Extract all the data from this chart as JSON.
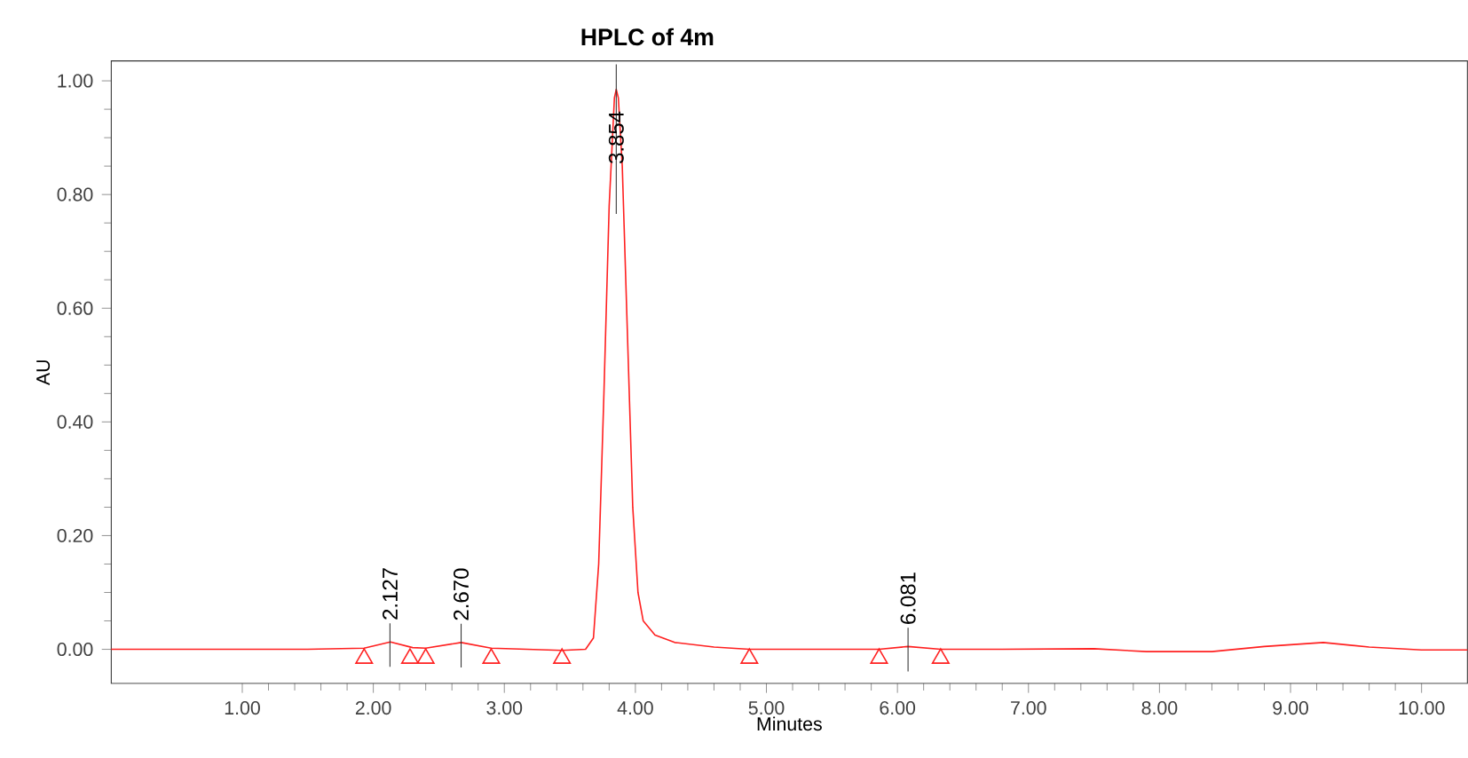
{
  "chart_data": {
    "type": "line",
    "title": "HPLC of 4m",
    "xlabel": "Minutes",
    "ylabel": "AU",
    "xlim": [
      0,
      10.35
    ],
    "ylim": [
      -0.06,
      1.035
    ],
    "xticks": [
      {
        "value": 1,
        "label": "1.00"
      },
      {
        "value": 2,
        "label": "2.00"
      },
      {
        "value": 3,
        "label": "3.00"
      },
      {
        "value": 4,
        "label": "4.00"
      },
      {
        "value": 5,
        "label": "5.00"
      },
      {
        "value": 6,
        "label": "6.00"
      },
      {
        "value": 7,
        "label": "7.00"
      },
      {
        "value": 8,
        "label": "8.00"
      },
      {
        "value": 9,
        "label": "9.00"
      },
      {
        "value": 10,
        "label": "10.00"
      }
    ],
    "yticks": [
      {
        "value": 0,
        "label": "0.00"
      },
      {
        "value": 0.2,
        "label": "0.20"
      },
      {
        "value": 0.4,
        "label": "0.40"
      },
      {
        "value": 0.6,
        "label": "0.60"
      },
      {
        "value": 0.8,
        "label": "0.80"
      },
      {
        "value": 1,
        "label": "1.00"
      }
    ],
    "series": [
      {
        "color": "#ff2020",
        "x": [
          0,
          1.5,
          1.93,
          2.13,
          2.3,
          2.4,
          2.67,
          2.9,
          3.44,
          3.62,
          3.68,
          3.72,
          3.76,
          3.8,
          3.84,
          3.854,
          3.87,
          3.9,
          3.94,
          3.98,
          4.02,
          4.06,
          4.15,
          4.3,
          4.6,
          4.87,
          5.5,
          5.86,
          6.08,
          6.33,
          6.8,
          7.5,
          7.9,
          8.4,
          8.8,
          9.25,
          9.6,
          10.0,
          10.35
        ],
        "values": [
          0,
          0,
          0.002,
          0.013,
          0.003,
          0.002,
          0.012,
          0.002,
          -0.002,
          0,
          0.02,
          0.15,
          0.45,
          0.78,
          0.97,
          0.985,
          0.97,
          0.85,
          0.55,
          0.25,
          0.1,
          0.05,
          0.025,
          0.012,
          0.004,
          0,
          0,
          0,
          0.005,
          0,
          0,
          0.001,
          -0.004,
          -0.004,
          0.005,
          0.012,
          0.004,
          -0.001,
          -0.001
        ]
      },
      {
        "type": "scatter",
        "marker": "triangle",
        "color": "#ff2020",
        "x": [
          1.93,
          2.28,
          2.4,
          2.9,
          3.44,
          4.87,
          5.86,
          6.33
        ],
        "values": [
          -0.016,
          -0.016,
          -0.016,
          -0.016,
          -0.016,
          -0.016,
          -0.016,
          -0.016
        ]
      }
    ],
    "annotations": [
      {
        "text": "2.127",
        "x": 2.127,
        "y": 0.013
      },
      {
        "text": "2.670",
        "x": 2.67,
        "y": 0.012
      },
      {
        "text": "3.854",
        "x": 3.854,
        "y": 0.985
      },
      {
        "text": "6.081",
        "x": 6.081,
        "y": 0.005
      }
    ],
    "grid": false
  }
}
